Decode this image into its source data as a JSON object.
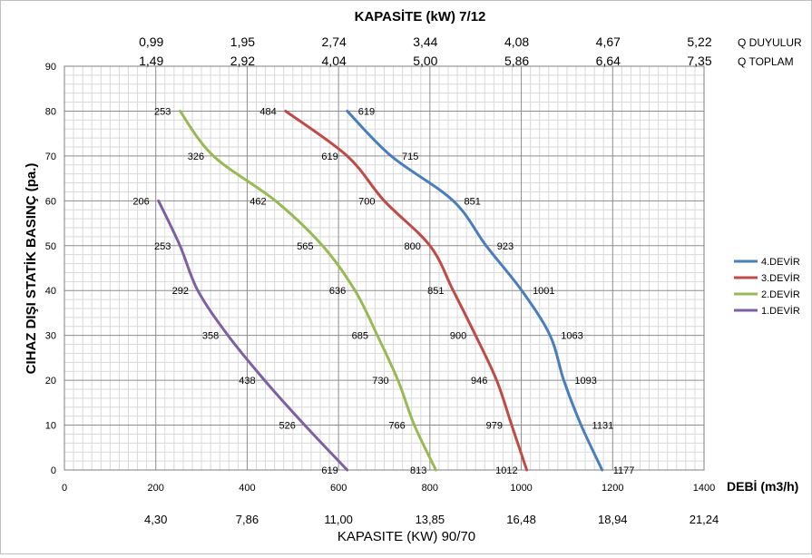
{
  "chart_data": {
    "type": "line",
    "title": "KAPASİTE (kW)  7/12",
    "xlabel": "DEBİ (m3/h)",
    "ylabel": "CIHAZ DIŞI STATİK BASINÇ (pa.)",
    "xlim": [
      0,
      1400
    ],
    "ylim": [
      0,
      90
    ],
    "x_ticks": [
      0,
      200,
      400,
      600,
      800,
      1000,
      1200,
      1400
    ],
    "y_ticks": [
      0,
      10,
      20,
      30,
      40,
      50,
      60,
      70,
      80,
      90
    ],
    "grid": true,
    "legend_position": "right",
    "top_axis": {
      "duyulur_label": "Q DUYULUR",
      "duyulur_values": [
        "0,99",
        "1,95",
        "2,74",
        "3,44",
        "4,08",
        "4,67",
        "5,22"
      ],
      "toplam_label": "Q TOPLAM",
      "toplam_values": [
        "1,49",
        "2,92",
        "4,04",
        "5,00",
        "5,86",
        "6,64",
        "7,35"
      ]
    },
    "bottom_axis": {
      "label": "KAPASITE (KW) 90/70",
      "values": [
        "4,30",
        "7,86",
        "11,00",
        "13,85",
        "16,48",
        "18,94",
        "21,24"
      ]
    },
    "series": [
      {
        "name": "4.DEVİR",
        "color": "#4a7ebb",
        "points": [
          {
            "x": 619,
            "y": 80,
            "label": "619"
          },
          {
            "x": 715,
            "y": 70,
            "label": "715"
          },
          {
            "x": 851,
            "y": 60,
            "label": "851"
          },
          {
            "x": 923,
            "y": 50,
            "label": "923"
          },
          {
            "x": 1001,
            "y": 40,
            "label": "1001"
          },
          {
            "x": 1063,
            "y": 30,
            "label": "1063"
          },
          {
            "x": 1093,
            "y": 20,
            "label": "1093"
          },
          {
            "x": 1131,
            "y": 10,
            "label": "1131"
          },
          {
            "x": 1177,
            "y": 0,
            "label": "1177"
          }
        ]
      },
      {
        "name": "3.DEVİR",
        "color": "#be4b48",
        "points": [
          {
            "x": 484,
            "y": 80,
            "label": "484"
          },
          {
            "x": 619,
            "y": 70,
            "label": "619"
          },
          {
            "x": 700,
            "y": 60,
            "label": "700"
          },
          {
            "x": 800,
            "y": 50,
            "label": "800"
          },
          {
            "x": 851,
            "y": 40,
            "label": "851"
          },
          {
            "x": 900,
            "y": 30,
            "label": "900"
          },
          {
            "x": 946,
            "y": 20,
            "label": "946"
          },
          {
            "x": 979,
            "y": 10,
            "label": "979"
          },
          {
            "x": 1012,
            "y": 0,
            "label": "1012"
          }
        ]
      },
      {
        "name": "2.DEVİR",
        "color": "#98b954",
        "points": [
          {
            "x": 253,
            "y": 80,
            "label": "253"
          },
          {
            "x": 326,
            "y": 70,
            "label": "326"
          },
          {
            "x": 462,
            "y": 60,
            "label": "462"
          },
          {
            "x": 565,
            "y": 50,
            "label": "565"
          },
          {
            "x": 636,
            "y": 40,
            "label": "636"
          },
          {
            "x": 685,
            "y": 30,
            "label": "685"
          },
          {
            "x": 730,
            "y": 20,
            "label": "730"
          },
          {
            "x": 766,
            "y": 10,
            "label": "766"
          },
          {
            "x": 813,
            "y": 0,
            "label": "813"
          }
        ]
      },
      {
        "name": "1.DEVİR",
        "color": "#7d60a0",
        "points": [
          {
            "x": 206,
            "y": 60,
            "label": "206"
          },
          {
            "x": 253,
            "y": 50,
            "label": "253"
          },
          {
            "x": 292,
            "y": 40,
            "label": "292"
          },
          {
            "x": 358,
            "y": 30,
            "label": "358"
          },
          {
            "x": 438,
            "y": 20,
            "label": "438"
          },
          {
            "x": 526,
            "y": 10,
            "label": "526"
          },
          {
            "x": 619,
            "y": 0,
            "label": "619"
          }
        ]
      }
    ]
  }
}
